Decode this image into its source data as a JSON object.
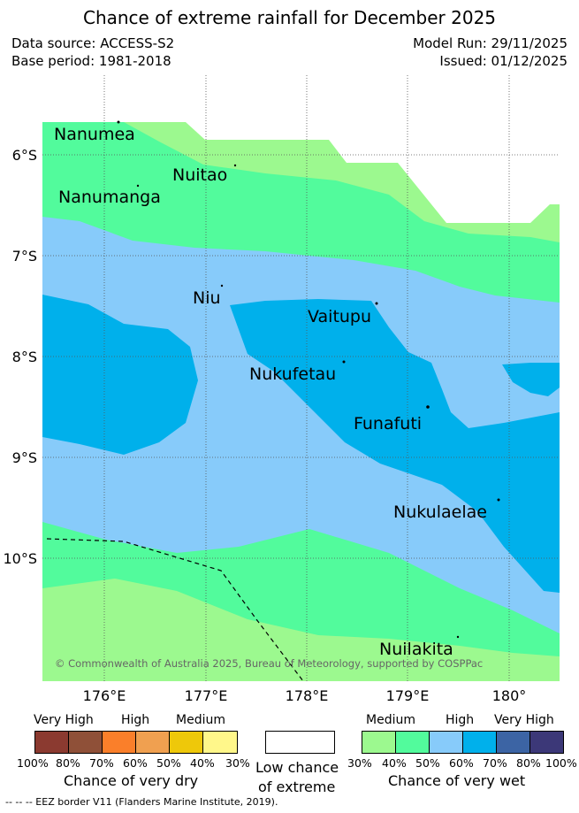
{
  "title": "Chance of extreme rainfall for December 2025",
  "header": {
    "data_source": "Data source: ACCESS-S2",
    "base_period": "Base period: 1981-2018",
    "model_run": "Model Run: 29/11/2025",
    "issued": "Issued: 01/12/2025"
  },
  "map": {
    "lat_labels": [
      "6°S",
      "7°S",
      "8°S",
      "9°S",
      "10°S"
    ],
    "lon_labels": [
      "176°E",
      "177°E",
      "178°E",
      "179°E",
      "180°"
    ],
    "places": [
      "Nanumea",
      "Nuitao",
      "Nanumanga",
      "Niu",
      "Vaitupu",
      "Nukufetau",
      "Funafuti",
      "Nukulaelae",
      "Nuilakita"
    ],
    "copyright": "© Commonwealth of Australia 2025, Bureau of Meteorology, supported by COSPPac"
  },
  "legend": {
    "dry": {
      "categories": [
        "Very High",
        "High",
        "Medium"
      ],
      "percents": [
        "100%",
        "80%",
        "70%",
        "60%",
        "50%",
        "40%",
        "30%"
      ],
      "colors": [
        "#8b3a30",
        "#8f5038",
        "#fa7f2a",
        "#f0a050",
        "#eec80a",
        "#fff78a"
      ],
      "caption": "Chance of very dry"
    },
    "neutral": {
      "line1": "Low chance",
      "line2": "of extreme"
    },
    "wet": {
      "categories": [
        "Medium",
        "High",
        "Very High"
      ],
      "percents": [
        "30%",
        "40%",
        "50%",
        "60%",
        "70%",
        "80%",
        "100%"
      ],
      "colors": [
        "#9cf98f",
        "#52fb9c",
        "#87cbfa",
        "#00b0eb",
        "#3c64a4",
        "#3c3878"
      ],
      "caption": "Chance of very wet"
    },
    "eez_note": "-- -- -- EEZ border V11 (Flanders Marine Institute, 2019)."
  }
}
